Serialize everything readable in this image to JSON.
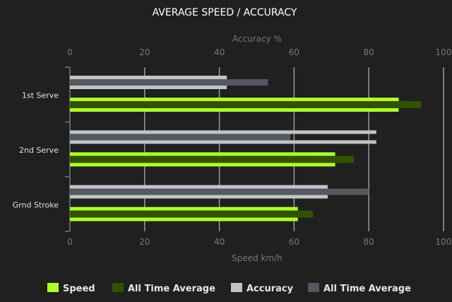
{
  "chart_data": {
    "type": "bar",
    "orientation": "horizontal",
    "title": "AVERAGE SPEED / ACCURACY",
    "top_axis": {
      "label": "Accuracy %",
      "range": [
        0,
        100
      ],
      "ticks": [
        "0",
        "20",
        "40",
        "60",
        "80",
        "100"
      ]
    },
    "bottom_axis": {
      "label": "Speed km/h",
      "range": [
        0,
        100
      ],
      "ticks": [
        "0",
        "20",
        "40",
        "60",
        "80",
        "100"
      ]
    },
    "categories": [
      "1st Serve",
      "2nd Serve",
      "Grnd Stroke"
    ],
    "series": [
      {
        "name": "Speed",
        "axis": "bottom",
        "color": "#adff2f",
        "values": [
          88,
          71,
          61
        ]
      },
      {
        "name": "All Time Average",
        "axis": "bottom",
        "color": "#335200",
        "values": [
          94,
          76,
          65
        ]
      },
      {
        "name": "Accuracy",
        "axis": "top",
        "color": "#c0c4c6",
        "values": [
          42,
          82,
          69
        ]
      },
      {
        "name": "All Time Average",
        "axis": "top",
        "color": "#545860",
        "values": [
          53,
          59,
          80
        ]
      }
    ],
    "grid": true,
    "legend_position": "bottom"
  }
}
